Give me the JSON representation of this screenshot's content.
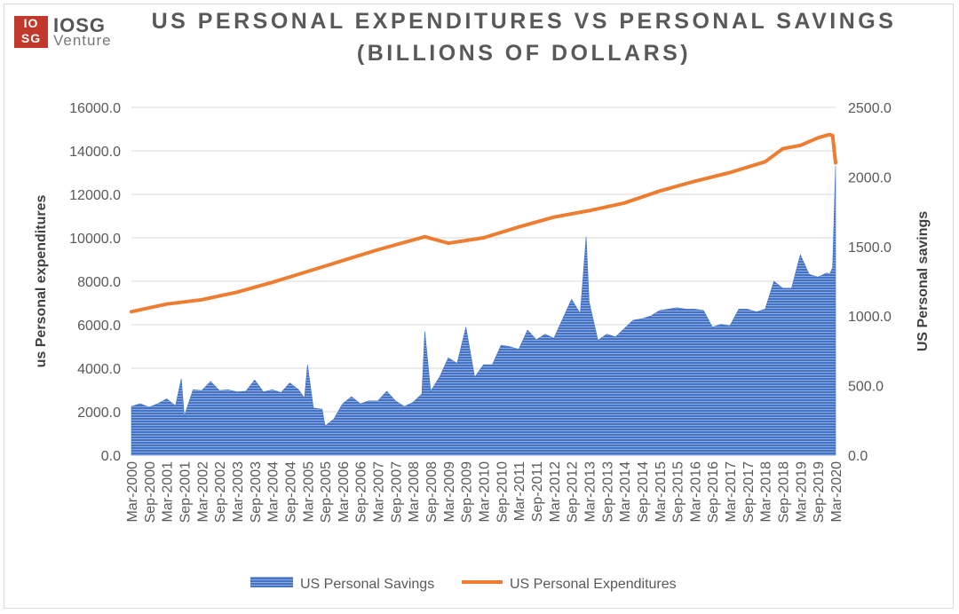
{
  "logo": {
    "mark_top": "IO",
    "mark_bottom": "SG",
    "name": "IOSG",
    "sub": "Venture"
  },
  "chart_data": {
    "type": "bar+line",
    "title": "US PERSONAL EXPENDITURES VS PERSONAL SAVINGS",
    "subtitle": "(BILLIONS OF DOLLARS)",
    "left_axis": {
      "label": "us Personal expenditures",
      "range": [
        0,
        16000
      ],
      "ticks": [
        "0.0",
        "2000.0",
        "4000.0",
        "6000.0",
        "8000.0",
        "10000.0",
        "12000.0",
        "14000.0",
        "16000.0"
      ]
    },
    "right_axis": {
      "label": "US Personal savings",
      "range": [
        0,
        2500
      ],
      "ticks": [
        "0.0",
        "500.0",
        "1000.0",
        "1500.0",
        "2000.0",
        "2500.0"
      ]
    },
    "x_tick_labels": [
      "Mar-2000",
      "Sep-2000",
      "Mar-2001",
      "Sep-2001",
      "Mar-2002",
      "Sep-2002",
      "Mar-2003",
      "Sep-2003",
      "Mar-2004",
      "Sep-2004",
      "Mar-2005",
      "Sep-2005",
      "Mar-2006",
      "Sep-2006",
      "Mar-2007",
      "Sep-2007",
      "Mar-2008",
      "Sep-2008",
      "Mar-2009",
      "Sep-2009",
      "Mar-2010",
      "Sep-2010",
      "Mar-2011",
      "Sep-2011",
      "Mar-2012",
      "Sep-2012",
      "Mar-2013",
      "Sep-2013",
      "Mar-2014",
      "Sep-2014",
      "Mar-2015",
      "Sep-2015",
      "Mar-2016",
      "Sep-2016",
      "Mar-2017",
      "Sep-2017",
      "Mar-2018",
      "Sep-2018",
      "Mar-2019",
      "Sep-2019",
      "Mar-2020"
    ],
    "series": [
      {
        "name": "US Personal Savings",
        "type": "area",
        "axis": "right",
        "color": "#4472c4",
        "points": [
          [
            "2000-03",
            350
          ],
          [
            "2000-06",
            370
          ],
          [
            "2000-09",
            345
          ],
          [
            "2000-12",
            370
          ],
          [
            "2001-03",
            405
          ],
          [
            "2001-06",
            355
          ],
          [
            "2001-08",
            550
          ],
          [
            "2001-09",
            280
          ],
          [
            "2001-12",
            470
          ],
          [
            "2002-03",
            465
          ],
          [
            "2002-06",
            530
          ],
          [
            "2002-09",
            465
          ],
          [
            "2002-12",
            470
          ],
          [
            "2003-03",
            455
          ],
          [
            "2003-06",
            460
          ],
          [
            "2003-09",
            540
          ],
          [
            "2003-12",
            455
          ],
          [
            "2004-03",
            470
          ],
          [
            "2004-06",
            450
          ],
          [
            "2004-09",
            520
          ],
          [
            "2004-12",
            470
          ],
          [
            "2005-02",
            410
          ],
          [
            "2005-03",
            650
          ],
          [
            "2005-05",
            340
          ],
          [
            "2005-08",
            330
          ],
          [
            "2005-09",
            210
          ],
          [
            "2005-12",
            260
          ],
          [
            "2006-03",
            370
          ],
          [
            "2006-06",
            420
          ],
          [
            "2006-09",
            370
          ],
          [
            "2006-12",
            390
          ],
          [
            "2007-03",
            390
          ],
          [
            "2007-06",
            460
          ],
          [
            "2007-09",
            390
          ],
          [
            "2007-12",
            350
          ],
          [
            "2008-03",
            380
          ],
          [
            "2008-06",
            440
          ],
          [
            "2008-07",
            890
          ],
          [
            "2008-09",
            460
          ],
          [
            "2008-12",
            560
          ],
          [
            "2009-03",
            700
          ],
          [
            "2009-06",
            660
          ],
          [
            "2009-09",
            920
          ],
          [
            "2009-12",
            560
          ],
          [
            "2010-03",
            650
          ],
          [
            "2010-06",
            650
          ],
          [
            "2010-09",
            790
          ],
          [
            "2010-12",
            780
          ],
          [
            "2011-03",
            760
          ],
          [
            "2011-06",
            900
          ],
          [
            "2011-09",
            830
          ],
          [
            "2011-12",
            870
          ],
          [
            "2012-03",
            840
          ],
          [
            "2012-06",
            980
          ],
          [
            "2012-09",
            1120
          ],
          [
            "2012-12",
            1020
          ],
          [
            "2013-02",
            1570
          ],
          [
            "2013-03",
            1100
          ],
          [
            "2013-06",
            825
          ],
          [
            "2013-09",
            870
          ],
          [
            "2013-12",
            850
          ],
          [
            "2014-03",
            910
          ],
          [
            "2014-06",
            970
          ],
          [
            "2014-09",
            980
          ],
          [
            "2014-12",
            1000
          ],
          [
            "2015-03",
            1040
          ],
          [
            "2015-06",
            1050
          ],
          [
            "2015-09",
            1060
          ],
          [
            "2015-12",
            1050
          ],
          [
            "2016-03",
            1050
          ],
          [
            "2016-06",
            1040
          ],
          [
            "2016-09",
            920
          ],
          [
            "2016-12",
            940
          ],
          [
            "2017-03",
            930
          ],
          [
            "2017-06",
            1050
          ],
          [
            "2017-09",
            1050
          ],
          [
            "2017-12",
            1030
          ],
          [
            "2018-03",
            1050
          ],
          [
            "2018-06",
            1250
          ],
          [
            "2018-09",
            1200
          ],
          [
            "2018-12",
            1200
          ],
          [
            "2019-03",
            1440
          ],
          [
            "2019-06",
            1300
          ],
          [
            "2019-09",
            1280
          ],
          [
            "2019-12",
            1310
          ],
          [
            "2020-01",
            1300
          ],
          [
            "2020-02",
            1350
          ],
          [
            "2020-03",
            2080
          ]
        ]
      },
      {
        "name": "US Personal Expenditures",
        "type": "line",
        "axis": "left",
        "color": "#ed7d31",
        "points": [
          [
            "2000-03",
            6600
          ],
          [
            "2001-03",
            6950
          ],
          [
            "2002-03",
            7150
          ],
          [
            "2003-03",
            7500
          ],
          [
            "2004-03",
            7950
          ],
          [
            "2005-03",
            8450
          ],
          [
            "2006-03",
            8950
          ],
          [
            "2007-03",
            9450
          ],
          [
            "2008-03",
            9900
          ],
          [
            "2008-07",
            10050
          ],
          [
            "2009-03",
            9750
          ],
          [
            "2010-03",
            10000
          ],
          [
            "2011-03",
            10500
          ],
          [
            "2012-03",
            10950
          ],
          [
            "2013-03",
            11250
          ],
          [
            "2014-03",
            11600
          ],
          [
            "2015-03",
            12150
          ],
          [
            "2016-03",
            12600
          ],
          [
            "2017-03",
            13000
          ],
          [
            "2018-03",
            13500
          ],
          [
            "2018-09",
            14100
          ],
          [
            "2019-03",
            14250
          ],
          [
            "2019-09",
            14600
          ],
          [
            "2020-01",
            14750
          ],
          [
            "2020-02",
            14700
          ],
          [
            "2020-03",
            13450
          ]
        ]
      }
    ],
    "legend": {
      "position": "bottom",
      "labels": [
        "US Personal Savings",
        "US Personal Expenditures"
      ]
    },
    "grid": true
  }
}
